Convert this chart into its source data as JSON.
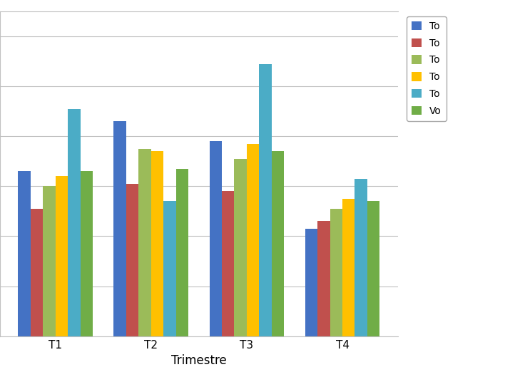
{
  "categories": [
    "T1",
    "T2",
    "T3",
    "T4"
  ],
  "series": [
    {
      "name": "To",
      "color": "#4472C4",
      "values": [
        330,
        430,
        390,
        215
      ]
    },
    {
      "name": "To",
      "color": "#C0504D",
      "values": [
        255,
        305,
        290,
        230
      ]
    },
    {
      "name": "To",
      "color": "#9BBB59",
      "values": [
        300,
        375,
        355,
        255
      ]
    },
    {
      "name": "To",
      "color": "#FFC000",
      "values": [
        320,
        370,
        385,
        275
      ]
    },
    {
      "name": "To",
      "color": "#4BACC6",
      "values": [
        455,
        270,
        545,
        315
      ]
    },
    {
      "name": "Vo",
      "color": "#70AD47",
      "values": [
        330,
        335,
        370,
        270
      ]
    }
  ],
  "xlabel": "Trimestre",
  "ylabel": "",
  "ylim_max": 650,
  "yticks": [
    0,
    100,
    200,
    300,
    400,
    500,
    600
  ],
  "background_color": "#FFFFFF",
  "bar_width": 0.13,
  "figsize": [
    7.15,
    5.36
  ],
  "dpi": 100
}
